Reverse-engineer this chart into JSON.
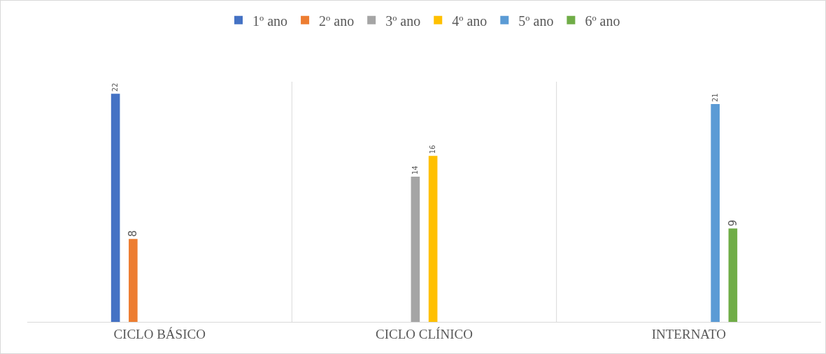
{
  "chart_data": {
    "type": "bar",
    "categories": [
      "CICLO BÁSICO",
      "CICLO CLÍNICO",
      "INTERNATO"
    ],
    "series": [
      {
        "name": "1º ano",
        "color": "#4472c4",
        "values": [
          22,
          null,
          null
        ]
      },
      {
        "name": "2º ano",
        "color": "#ed7d31",
        "values": [
          8,
          null,
          null
        ]
      },
      {
        "name": "3º ano",
        "color": "#a5a5a5",
        "values": [
          null,
          14,
          null
        ]
      },
      {
        "name": "4º ano",
        "color": "#ffc000",
        "values": [
          null,
          16,
          null
        ]
      },
      {
        "name": "5º ano",
        "color": "#5b9bd5",
        "values": [
          null,
          null,
          21
        ]
      },
      {
        "name": "6º ano",
        "color": "#70ad47",
        "values": [
          null,
          null,
          9
        ]
      }
    ],
    "data_labels": true,
    "grid": "x",
    "legend": "top"
  }
}
